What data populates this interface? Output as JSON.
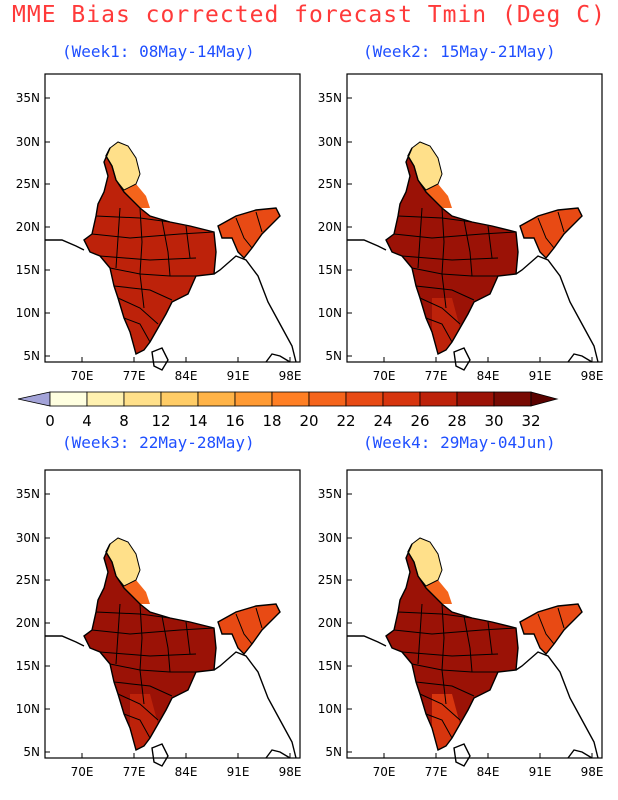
{
  "title": "MME Bias corrected forecast Tmin (Deg C)",
  "panels": [
    {
      "title": "(Week1: 08May-14May)",
      "center_value": 26,
      "north_value": 10,
      "hill_value": 20,
      "ne_value": 22,
      "south_value": 27
    },
    {
      "title": "(Week2: 15May-21May)",
      "center_value": 28,
      "north_value": 10,
      "hill_value": 20,
      "ne_value": 22,
      "south_value": 27
    },
    {
      "title": "(Week3: 22May-28May)",
      "center_value": 29,
      "north_value": 10,
      "hill_value": 20,
      "ne_value": 22,
      "south_value": 26
    },
    {
      "title": "(Week4: 29May-04Jun)",
      "center_value": 29,
      "north_value": 10,
      "hill_value": 20,
      "ne_value": 22,
      "south_value": 25
    }
  ],
  "axes": {
    "lon_ticks": [
      "70E",
      "77E",
      "84E",
      "91E",
      "98E"
    ],
    "lat_ticks": [
      "35N",
      "30N",
      "25N",
      "20N",
      "15N",
      "10N",
      "5N"
    ]
  },
  "colorbar": {
    "labels": [
      "0",
      "4",
      "8",
      "12",
      "14",
      "16",
      "18",
      "20",
      "22",
      "24",
      "26",
      "28",
      "30",
      "32"
    ],
    "colors": [
      "#a3a3d8",
      "#ffffe0",
      "#fff1b0",
      "#ffe08a",
      "#ffcc66",
      "#ffb347",
      "#ff9a33",
      "#ff7f24",
      "#f5641b",
      "#e84a14",
      "#d7350e",
      "#bd220a",
      "#9b1206",
      "#780a03",
      "#5a0200"
    ]
  }
}
